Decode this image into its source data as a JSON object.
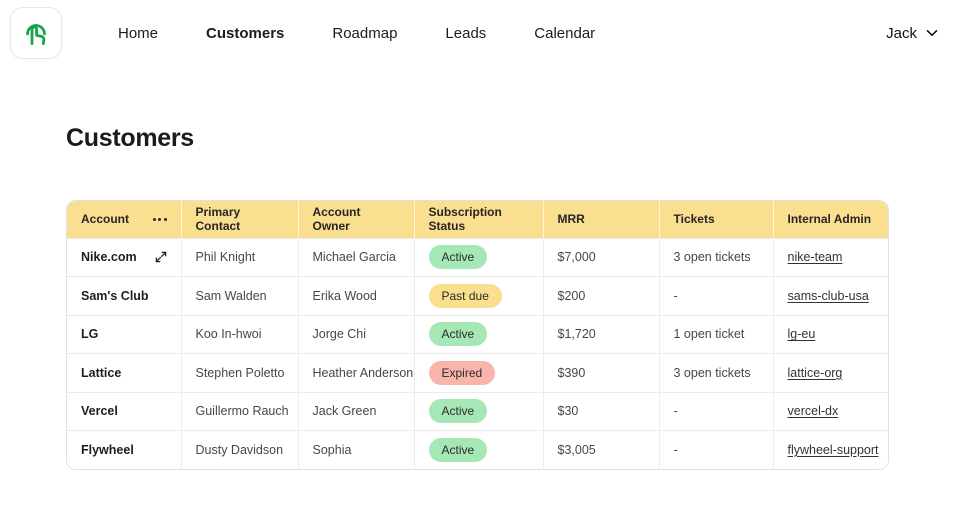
{
  "colors": {
    "brand_green": "#17a34a",
    "header_yellow": "#fadf90",
    "badge_active": "#a5e8b6",
    "badge_past_due": "#fadf8f",
    "badge_expired": "#f9b4ac"
  },
  "nav": {
    "logo_icon": "tap-gesture-icon",
    "items": [
      {
        "label": "Home",
        "active": false
      },
      {
        "label": "Customers",
        "active": true
      },
      {
        "label": "Roadmap",
        "active": false
      },
      {
        "label": "Leads",
        "active": false
      },
      {
        "label": "Calendar",
        "active": false
      }
    ],
    "user": {
      "name": "Jack",
      "chevron_icon": "chevron-down-icon"
    }
  },
  "page": {
    "title": "Customers"
  },
  "table": {
    "columns": [
      "Account",
      "Primary Contact",
      "Account Owner",
      "Subscription Status",
      "MRR",
      "Tickets",
      "Internal Admin"
    ],
    "header_bg": "#fadf90",
    "status_colors": {
      "Active": "#a5e8b6",
      "Past due": "#fadf8f",
      "Expired": "#f9b4ac"
    },
    "rows": [
      {
        "account": "Nike.com",
        "expand_icon": true,
        "primary_contact": "Phil Knight",
        "account_owner": "Michael Garcia",
        "status": "Active",
        "mrr": "$7,000",
        "tickets": "3 open tickets",
        "internal_admin": "nike-team"
      },
      {
        "account": "Sam's Club",
        "expand_icon": false,
        "primary_contact": "Sam Walden",
        "account_owner": "Erika Wood",
        "status": "Past due",
        "mrr": "$200",
        "tickets": "-",
        "internal_admin": "sams-club-usa"
      },
      {
        "account": "LG",
        "expand_icon": false,
        "primary_contact": "Koo In-hwoi",
        "account_owner": "Jorge Chi",
        "status": "Active",
        "mrr": "$1,720",
        "tickets": "1 open ticket",
        "internal_admin": "lg-eu"
      },
      {
        "account": "Lattice",
        "expand_icon": false,
        "primary_contact": "Stephen Poletto",
        "account_owner": "Heather Anderson",
        "status": "Expired",
        "mrr": "$390",
        "tickets": "3 open tickets",
        "internal_admin": "lattice-org"
      },
      {
        "account": "Vercel",
        "expand_icon": false,
        "primary_contact": "Guillermo Rauch",
        "account_owner": "Jack Green",
        "status": "Active",
        "mrr": "$30",
        "tickets": "-",
        "internal_admin": "vercel-dx"
      },
      {
        "account": "Flywheel",
        "expand_icon": false,
        "primary_contact": "Dusty Davidson",
        "account_owner": "Sophia",
        "status": "Active",
        "mrr": "$3,005",
        "tickets": "-",
        "internal_admin": "flywheel-support"
      }
    ]
  }
}
